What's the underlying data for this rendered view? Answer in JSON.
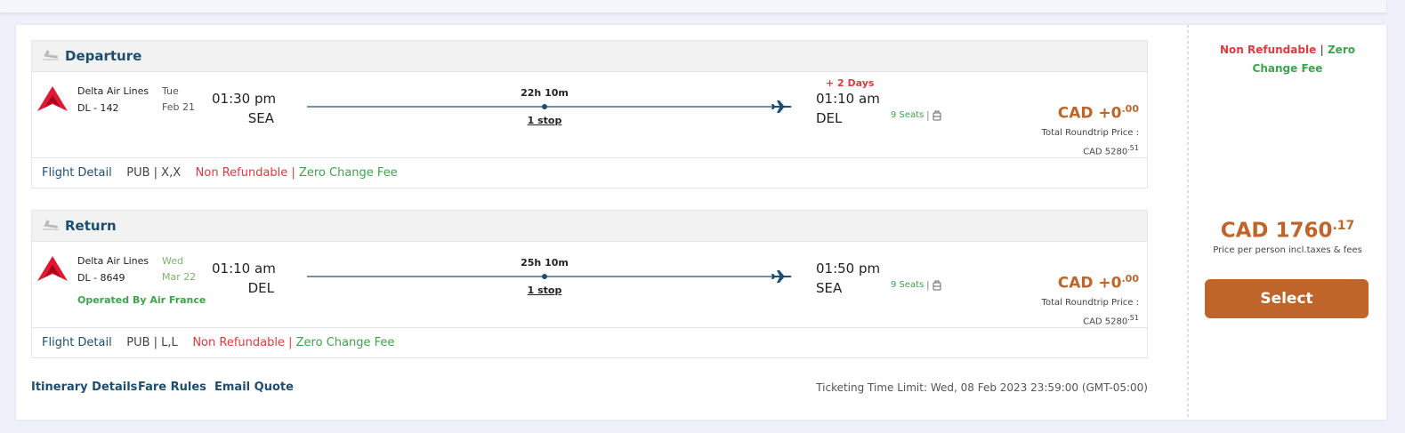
{
  "segments": [
    {
      "heading": "Departure",
      "airline": "Delta Air Lines",
      "flight": "DL - 142",
      "day": "Tue",
      "date": "Feb 21",
      "dep_time": "01:30 pm",
      "dep_airport": "SEA",
      "duration": "22h 10m",
      "stops": "1 stop",
      "day_offset": "+ 2 Days",
      "arr_time": "01:10 am",
      "arr_airport": "DEL",
      "seats": "9 Seats",
      "seat_separator": "|",
      "price": "CAD +0",
      "price_cents": ".00",
      "total_label": "Total Roundtrip Price :",
      "total": "CAD 5280",
      "total_cents": ".51",
      "flight_detail": "Flight Detail",
      "fare_class": "PUB | X,X",
      "non_refundable": "Non Refundable",
      "separator": "|",
      "change_fee": "Zero Change Fee"
    },
    {
      "heading": "Return",
      "airline": "Delta Air Lines",
      "flight": "DL - 8649",
      "day": "Wed",
      "date": "Mar 22",
      "operated_by": "Operated By Air France",
      "dep_time": "01:10 am",
      "dep_airport": "DEL",
      "duration": "25h 10m",
      "stops": "1 stop",
      "arr_time": "01:50 pm",
      "arr_airport": "SEA",
      "seats": "9 Seats",
      "seat_separator": "|",
      "price": "CAD +0",
      "price_cents": ".00",
      "total_label": "Total Roundtrip Price :",
      "total": "CAD 5280",
      "total_cents": ".51",
      "flight_detail": "Flight Detail",
      "fare_class": "PUB | L,L",
      "non_refundable": "Non Refundable",
      "separator": "|",
      "change_fee": "Zero Change Fee"
    }
  ],
  "links": [
    "Itinerary Details",
    "Fare Rules",
    "Email Quote"
  ],
  "ticketing_limit": "Ticketing Time Limit: Wed, 08 Feb 2023 23:59:00 (GMT-05:00)",
  "summary": {
    "non_refundable": "Non Refundable",
    "separator": "|",
    "change_fee": "Zero Change Fee",
    "price": "CAD 1760",
    "price_cents": ".17",
    "price_note": "Price per person incl.taxes & fees",
    "button": "Select"
  }
}
